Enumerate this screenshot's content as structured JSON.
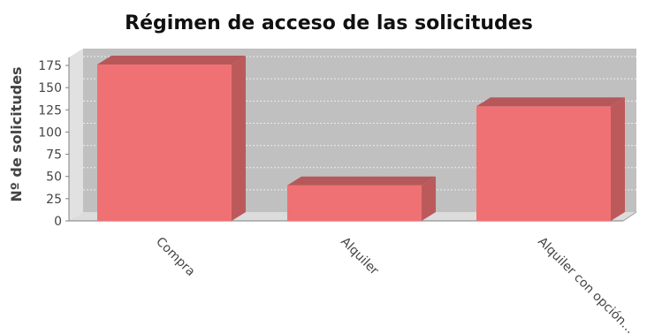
{
  "chart_data": {
    "type": "bar",
    "title": "Régimen de acceso de las solicitudes",
    "xlabel": "",
    "ylabel": "Nº de solicitudes",
    "categories": [
      "Compra",
      "Alquiler",
      "Alquiler con opción..."
    ],
    "values": [
      176,
      40,
      129
    ],
    "ylim": [
      0,
      184
    ],
    "yticks": [
      0,
      25,
      50,
      75,
      100,
      125,
      150,
      175
    ],
    "grid": true,
    "legend": "none",
    "style": "3d",
    "colors": {
      "bar_front": "#f07173",
      "bar_top": "#b65859",
      "bar_side": "#bc5a5b",
      "plot_back": "#c0c0c0",
      "plot_left_wall": "#e1e1e1",
      "plot_floor": "#dcdcdc",
      "gridline": "#ececec",
      "axis_text": "#444444",
      "title_text": "#111111"
    }
  }
}
